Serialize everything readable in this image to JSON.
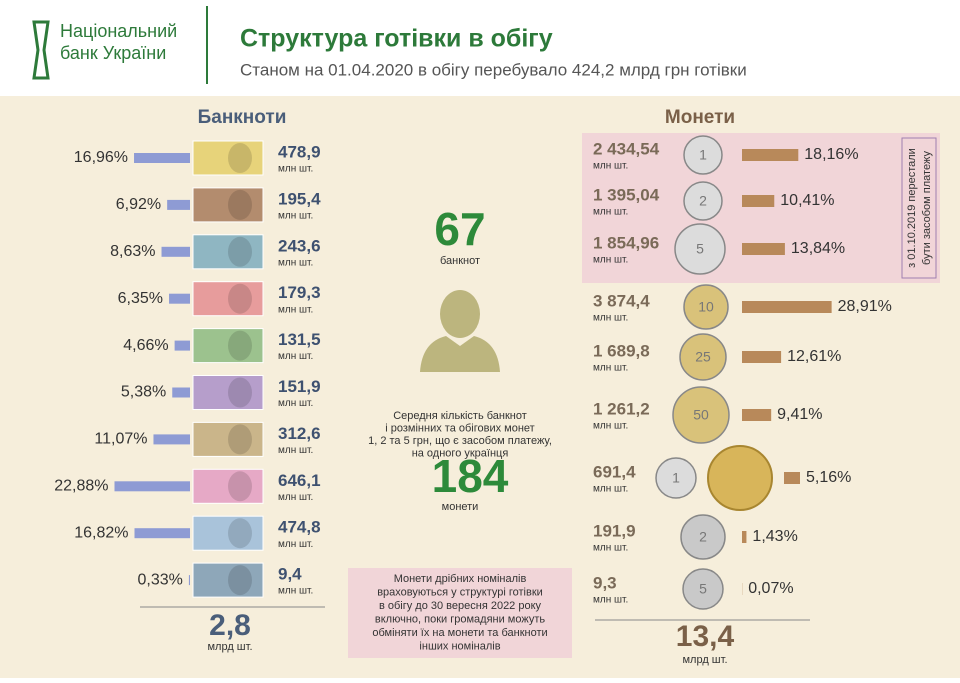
{
  "header": {
    "logo": [
      "Національний",
      "банк України"
    ],
    "title": "Структура готівки в обігу",
    "subtitle": "Станом на 01.04.2020 в обігу перебувало 424,2 млрд грн готівки"
  },
  "banknotes": {
    "title": "Банкноти",
    "shares": [
      16.96,
      6.92,
      8.63,
      6.35,
      4.66,
      5.38,
      11.07,
      22.88,
      16.82,
      0.33
    ],
    "share_labels": [
      "16,96%",
      "6,92%",
      "8,63%",
      "6,35%",
      "4,66%",
      "5,38%",
      "11,07%",
      "22,88%",
      "16,82%",
      "0,33%"
    ],
    "counts": [
      "478,9",
      "195,4",
      "243,6",
      "179,3",
      "131,5",
      "151,9",
      "312,6",
      "646,1",
      "474,8",
      "9,4"
    ],
    "unit": "млн шт.",
    "total": "2,8",
    "total_unit": "млрд шт.",
    "color": "#8e9bd4"
  },
  "center": {
    "banknote_count": "67",
    "banknote_label": "банкнот",
    "text": [
      "Середня кількість банкнот",
      "і  розмінних та обігових монет",
      "1, 2 та 5 грн, що є засобом платежу,",
      "на одного українця"
    ],
    "coin_count": "184",
    "coin_label": "монети",
    "note": [
      "Монети дрібних номіналів",
      "враховуються у структурі готівки",
      "в  обігу  до 30 вересня 2022 року",
      "включно, поки громадяни можуть",
      "обміняти їх  на монети та банкноти",
      "інших номіналів"
    ]
  },
  "coins": {
    "title": "Монети",
    "counts": [
      "2 434,54",
      "1 395,04",
      "1 854,96",
      "3 874,4",
      "1 689,8",
      "1 261,2",
      "691,4",
      "191,9",
      "9,3"
    ],
    "shares": [
      18.16,
      10.41,
      13.84,
      28.91,
      12.61,
      9.41,
      5.16,
      1.43,
      0.07
    ],
    "share_labels": [
      "18,16%",
      "10,41%",
      "13,84%",
      "28,91%",
      "12,61%",
      "9,41%",
      "5,16%",
      "1,43%",
      "0,07%"
    ],
    "denominations": [
      "1",
      "2",
      "5",
      "10",
      "25",
      "50",
      "1",
      "2",
      "5"
    ],
    "unit": "млн шт.",
    "total": "13,4",
    "total_unit": "млрд шт.",
    "side_note": [
      "з 01.10.2019 перестали",
      "бути засобом  платежу"
    ],
    "color": "#b8895a"
  }
}
